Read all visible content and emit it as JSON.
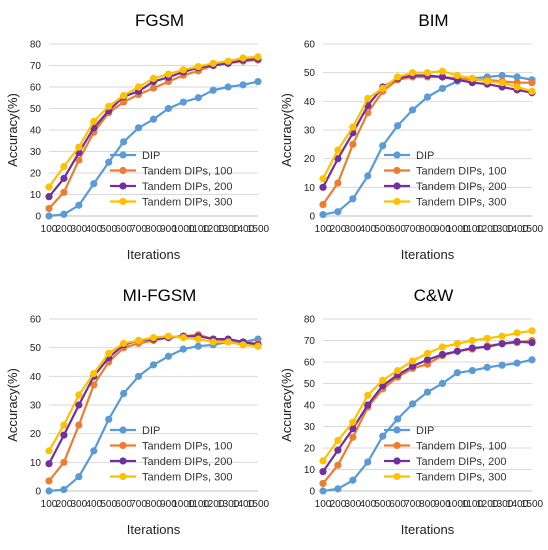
{
  "colors": {
    "DIP": "#5B9BD5",
    "Tandem DIPs, 100": "#ED7D31",
    "Tandem DIPs, 200": "#7030A0",
    "Tandem DIPs, 300": "#FFC000",
    "grid": "#d9d9d9",
    "axis": "#bfbfbf"
  },
  "chart_data": [
    {
      "type": "line",
      "title": "FGSM",
      "xlabel": "Iterations",
      "ylabel": "Accuracy(%)",
      "x": [
        100,
        200,
        300,
        400,
        500,
        600,
        700,
        800,
        900,
        1000,
        1100,
        1200,
        1300,
        1400,
        1500
      ],
      "xticks": [
        "100",
        "200",
        "300",
        "400",
        "500",
        "600",
        "700",
        "800",
        "900",
        "1000",
        "1100",
        "1200",
        "1300",
        "1400",
        "1500"
      ],
      "ylim": [
        0,
        80
      ],
      "yticks": [
        "0",
        "10",
        "20",
        "30",
        "40",
        "50",
        "60",
        "70",
        "80"
      ],
      "grid": "horizontal",
      "legend": "bottom-right",
      "series": [
        {
          "name": "DIP",
          "values": [
            0,
            0.8,
            5,
            15,
            25,
            34.5,
            41,
            45,
            50,
            53,
            55,
            58.5,
            60,
            61,
            62.5
          ]
        },
        {
          "name": "Tandem DIPs, 100",
          "values": [
            3.5,
            11,
            26,
            39,
            48,
            53,
            56.5,
            59.5,
            62.5,
            65.5,
            67.5,
            70,
            71,
            72,
            72.5
          ]
        },
        {
          "name": "Tandem DIPs, 200",
          "values": [
            9,
            17.5,
            29.5,
            41,
            49,
            55.5,
            58,
            62.5,
            64.5,
            67,
            69,
            70,
            71,
            72.5,
            73
          ]
        },
        {
          "name": "Tandem DIPs, 300",
          "values": [
            13.5,
            23,
            32,
            44,
            51,
            56,
            60,
            64,
            66,
            68,
            69.5,
            71,
            72,
            73.5,
            74
          ]
        }
      ]
    },
    {
      "type": "line",
      "title": "BIM",
      "xlabel": "Iterations",
      "ylabel": "Accuracy(%)",
      "x": [
        100,
        200,
        300,
        400,
        500,
        600,
        700,
        800,
        900,
        1000,
        1100,
        1200,
        1300,
        1400,
        1500
      ],
      "xticks": [
        "100",
        "200",
        "300",
        "400",
        "500",
        "600",
        "700",
        "800",
        "900",
        "1000",
        "1100",
        "1200",
        "1300",
        "1400",
        "1500"
      ],
      "ylim": [
        0,
        60
      ],
      "yticks": [
        "0",
        "10",
        "20",
        "30",
        "40",
        "50",
        "60"
      ],
      "grid": "horizontal",
      "legend": "bottom-right",
      "series": [
        {
          "name": "DIP",
          "values": [
            0.5,
            1.5,
            6,
            14,
            24.5,
            31.5,
            37,
            41.5,
            44.5,
            47,
            48,
            48.5,
            49,
            48.5,
            47.5
          ]
        },
        {
          "name": "Tandem DIPs, 100",
          "values": [
            4,
            11.5,
            25,
            36,
            43.5,
            47.5,
            48.5,
            48.5,
            48.5,
            48,
            47.5,
            47.5,
            47,
            46.5,
            46.5
          ]
        },
        {
          "name": "Tandem DIPs, 200",
          "values": [
            10,
            20,
            29,
            38.5,
            45,
            48,
            49,
            49,
            48.5,
            47.5,
            46.5,
            46,
            45,
            44,
            43
          ]
        },
        {
          "name": "Tandem DIPs, 300",
          "values": [
            13,
            23,
            31,
            41,
            44.5,
            48.5,
            50,
            50,
            50.5,
            49,
            48,
            47,
            46.5,
            45,
            43.5
          ]
        }
      ]
    },
    {
      "type": "line",
      "title": "MI-FGSM",
      "xlabel": "Iterations",
      "ylabel": "Accuracy(%)",
      "x": [
        100,
        200,
        300,
        400,
        500,
        600,
        700,
        800,
        900,
        1000,
        1100,
        1200,
        1300,
        1400,
        1500
      ],
      "xticks": [
        "100",
        "200",
        "300",
        "400",
        "500",
        "600",
        "700",
        "800",
        "900",
        "1000",
        "1100",
        "1200",
        "1300",
        "1400",
        "1500"
      ],
      "ylim": [
        0,
        60
      ],
      "yticks": [
        "0",
        "10",
        "20",
        "30",
        "40",
        "50",
        "60"
      ],
      "grid": "horizontal",
      "legend": "bottom-right",
      "series": [
        {
          "name": "DIP",
          "values": [
            0,
            0.5,
            5,
            14,
            25,
            34,
            40,
            44,
            47,
            49.5,
            50.5,
            51,
            52,
            52,
            53
          ]
        },
        {
          "name": "Tandem DIPs, 100",
          "values": [
            3.5,
            10,
            23,
            37,
            45,
            50,
            51.5,
            52.5,
            53.5,
            54,
            54.5,
            53,
            52.5,
            52,
            51.5
          ]
        },
        {
          "name": "Tandem DIPs, 200",
          "values": [
            9.5,
            19.5,
            30,
            40,
            46.5,
            51,
            52.5,
            53,
            53.5,
            54,
            54,
            53,
            53,
            52,
            51
          ]
        },
        {
          "name": "Tandem DIPs, 300",
          "values": [
            14,
            23,
            33.5,
            41,
            48,
            51.5,
            52.5,
            53.5,
            54,
            53.5,
            53,
            52,
            52,
            51,
            50.5
          ]
        }
      ]
    },
    {
      "type": "line",
      "title": "C&W",
      "xlabel": "Iterations",
      "ylabel": "Accuracy(%)",
      "x": [
        100,
        200,
        300,
        400,
        500,
        600,
        700,
        800,
        900,
        1000,
        1100,
        1200,
        1300,
        1400,
        1500
      ],
      "xticks": [
        "100",
        "200",
        "300",
        "400",
        "500",
        "600",
        "700",
        "800",
        "900",
        "1000",
        "1100",
        "1200",
        "1300",
        "1400",
        "1500"
      ],
      "ylim": [
        0,
        80
      ],
      "yticks": [
        "0",
        "10",
        "20",
        "30",
        "40",
        "50",
        "60",
        "70",
        "80"
      ],
      "grid": "horizontal",
      "legend": "bottom-right",
      "series": [
        {
          "name": "DIP",
          "values": [
            0,
            1,
            5,
            13.5,
            25.5,
            33.5,
            40.5,
            46,
            50,
            55,
            56,
            57.5,
            58.5,
            59.5,
            61
          ]
        },
        {
          "name": "Tandem DIPs, 100",
          "values": [
            3.5,
            12,
            25,
            39,
            47.5,
            53,
            57,
            59,
            63,
            65,
            66,
            67.5,
            68.5,
            69,
            70
          ]
        },
        {
          "name": "Tandem DIPs, 200",
          "values": [
            9,
            19,
            29,
            40,
            49,
            54,
            58,
            61,
            63.5,
            65,
            66.5,
            67,
            68.5,
            69.5,
            69
          ]
        },
        {
          "name": "Tandem DIPs, 300",
          "values": [
            14,
            23.5,
            32,
            44.5,
            51.5,
            56,
            60.5,
            64,
            67,
            68.5,
            70,
            71,
            72,
            73.5,
            74.5
          ]
        }
      ]
    }
  ]
}
